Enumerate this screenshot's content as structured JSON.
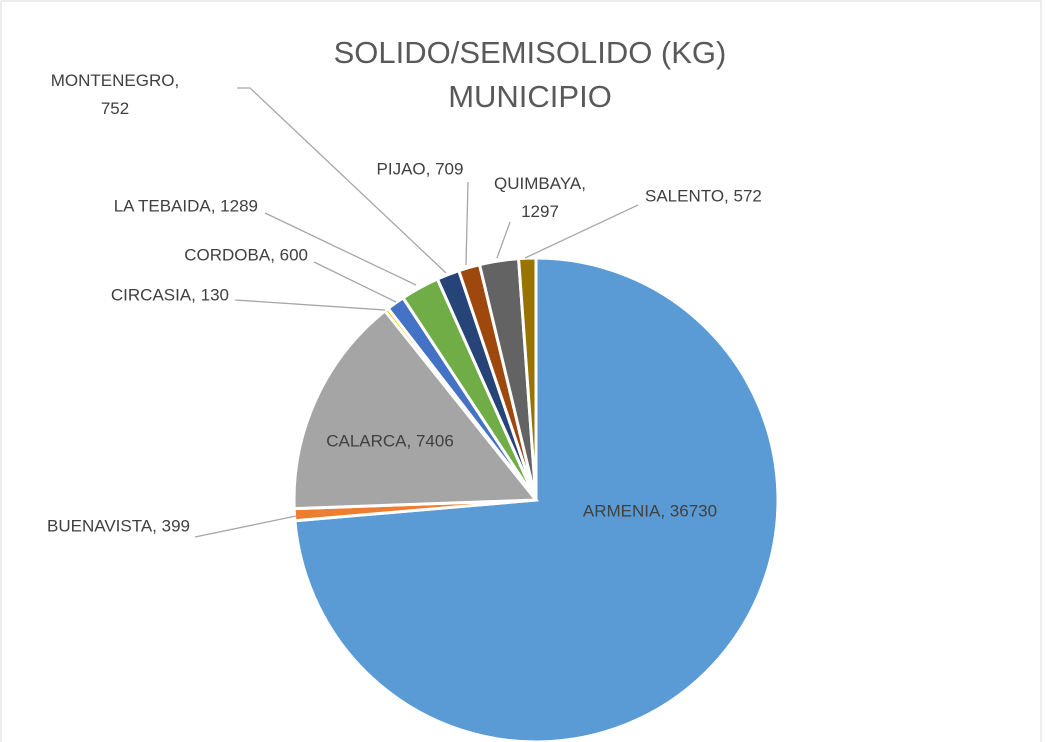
{
  "chart_data": {
    "type": "pie",
    "title": "SOLIDO/SEMISOLIDO (KG) MUNICIPIO",
    "values": [
      36730,
      399,
      7406,
      130,
      600,
      1289,
      752,
      709,
      1297,
      572
    ],
    "value_labels": [
      "ARMENIA, 36730",
      "BUENAVISTA, 399",
      "CALARCA, 7406",
      "CIRCASIA, 130",
      "CORDOBA, 600",
      "LA TEBAIDA, 1289",
      "MONTENEGRO, 752",
      "PIJAO, 709",
      "QUIMBAYA, 1297",
      "SALENTO, 572"
    ],
    "colors": [
      "#5b9bd5",
      "#ed7d31",
      "#a5a5a5",
      "#ffc000",
      "#4472c4",
      "#70ad47",
      "#264478",
      "#9e480e",
      "#636363",
      "#997300"
    ]
  }
}
